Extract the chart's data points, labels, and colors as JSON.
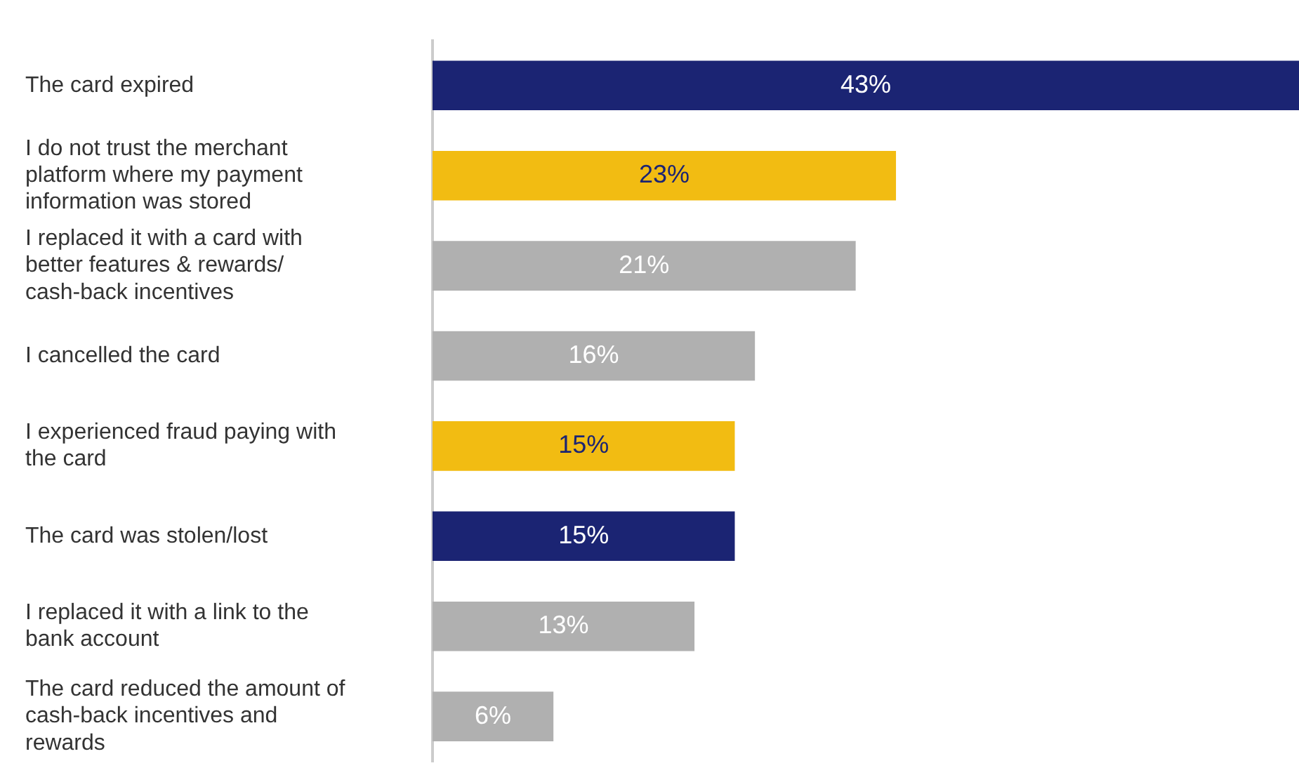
{
  "chart_data": {
    "type": "bar",
    "orientation": "horizontal",
    "categories": [
      "The card expired",
      "I do not trust the merchant platform where my payment information was stored",
      "I replaced it with a card with better features & rewards/ cash-back incentives",
      "I cancelled the card",
      "I experienced fraud paying with the card",
      "The card was stolen/lost",
      "I replaced it with a link to the bank account",
      "The card reduced the amount of cash-back incentives and rewards"
    ],
    "values": [
      43,
      23,
      21,
      16,
      15,
      15,
      13,
      6
    ],
    "colors": [
      "#1b2473",
      "#f2bc12",
      "#b0b0b0",
      "#b0b0b0",
      "#f2bc12",
      "#1b2473",
      "#b0b0b0",
      "#b0b0b0"
    ],
    "value_labels": [
      "43%",
      "23%",
      "21%",
      "16%",
      "15%",
      "15%",
      "13%",
      "6%"
    ],
    "xlim": [
      0,
      43
    ],
    "legend": false
  }
}
